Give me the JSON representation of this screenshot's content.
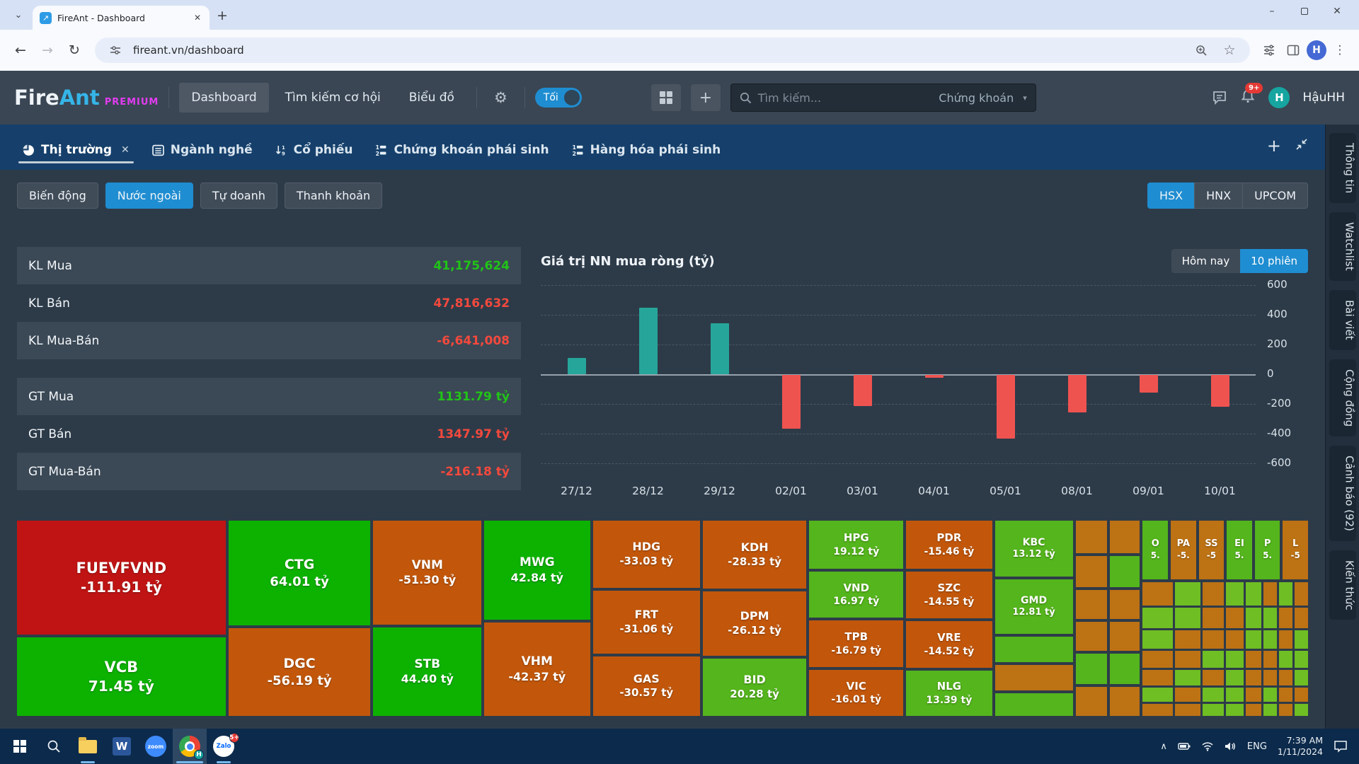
{
  "browser": {
    "tab_title": "FireAnt - Dashboard",
    "favicon_glyph": "↗",
    "url": "fireant.vn/dashboard"
  },
  "header": {
    "logo_fire": "Fire",
    "logo_ant": "Ant",
    "logo_badge": "PREMIUM",
    "nav": [
      {
        "label": "Dashboard",
        "slug": "dashboard",
        "active": true
      },
      {
        "label": "Tìm kiếm cơ hội",
        "slug": "tim-kiem-co-hoi"
      },
      {
        "label": "Biểu đồ",
        "slug": "bieu-do"
      }
    ],
    "theme_toggle_label": "Tối",
    "search_placeholder": "Tìm kiếm...",
    "search_scope": "Chứng khoán",
    "notification_badge": "9+",
    "avatar_initial": "H",
    "username": "HậuHH"
  },
  "workspace": {
    "tabs": [
      {
        "label": "Thị trường",
        "slug": "thi-truong",
        "icon": "pie",
        "active": true
      },
      {
        "label": "Ngành nghề",
        "slug": "nganh-nghe",
        "icon": "list"
      },
      {
        "label": "Cổ phiếu",
        "slug": "co-phieu",
        "icon": "sort"
      },
      {
        "label": "Chứng khoán phái sinh",
        "slug": "chung-khoan-phai-sinh",
        "icon": "numlist"
      },
      {
        "label": "Hàng hóa phái sinh",
        "slug": "hang-hoa-phai-sinh",
        "icon": "numlist"
      }
    ]
  },
  "filters": {
    "views": [
      {
        "label": "Biến động",
        "slug": "bien-dong"
      },
      {
        "label": "Nước ngoài",
        "slug": "nuoc-ngoai",
        "active": true
      },
      {
        "label": "Tự doanh",
        "slug": "tu-doanh"
      },
      {
        "label": "Thanh khoản",
        "slug": "thanh-khoan"
      }
    ],
    "exchanges": [
      {
        "label": "HSX",
        "slug": "hsx",
        "active": true
      },
      {
        "label": "HNX",
        "slug": "hnx"
      },
      {
        "label": "UPCOM",
        "slug": "upcom"
      }
    ]
  },
  "stats": {
    "groups": [
      {
        "rows": [
          {
            "label": "KL Mua",
            "value": "41,175,624",
            "dir": "up"
          },
          {
            "label": "KL Bán",
            "value": "47,816,632",
            "dir": "down"
          },
          {
            "label": "KL Mua-Bán",
            "value": "-6,641,008",
            "dir": "down"
          }
        ]
      },
      {
        "rows": [
          {
            "label": "GT Mua",
            "value": "1131.79 tỷ",
            "dir": "up"
          },
          {
            "label": "GT Bán",
            "value": "1347.97 tỷ",
            "dir": "down"
          },
          {
            "label": "GT Mua-Bán",
            "value": "-216.18 tỷ",
            "dir": "down"
          }
        ]
      }
    ]
  },
  "chart_data": {
    "type": "bar",
    "title": "Giá trị NN mua ròng (tỷ)",
    "buttons": [
      "Hôm nay",
      "10 phiên"
    ],
    "active_button": "10 phiên",
    "categories": [
      "27/12",
      "28/12",
      "29/12",
      "02/01",
      "03/01",
      "04/01",
      "05/01",
      "08/01",
      "09/01",
      "10/01"
    ],
    "values": [
      110,
      450,
      345,
      -360,
      -210,
      -20,
      -430,
      -250,
      -120,
      -215
    ],
    "ylim": [
      -600,
      600
    ],
    "yticks": [
      600,
      400,
      200,
      0,
      -200,
      -400,
      -600
    ],
    "grid": true,
    "positive_color": "#26a69a",
    "negative_color": "#ef5350"
  },
  "treemap": {
    "colors": {
      "red": "#c01414",
      "green1": "#0db201",
      "green2": "#54b51c",
      "green3": "#6fbe23",
      "orange1": "#c2570b",
      "orange2": "#bd7214"
    },
    "columns": [
      {
        "w": 17.5,
        "fs": 21,
        "cells": [
          {
            "sym": "FUEVFVND",
            "val": "-111.91 tỷ",
            "color": "red",
            "h": 65
          },
          {
            "sym": "VCB",
            "val": "71.45 tỷ",
            "color": "green1",
            "h": 35
          }
        ]
      },
      {
        "w": 11.5,
        "fs": 19,
        "cells": [
          {
            "sym": "CTG",
            "val": "64.01 tỷ",
            "color": "green1",
            "h": 57
          },
          {
            "sym": "DGC",
            "val": "-56.19 tỷ",
            "color": "orange1",
            "h": 43
          }
        ]
      },
      {
        "w": 7.5,
        "fs": 17,
        "cells": [
          {
            "sym": "VNM",
            "val": "-51.30 tỷ",
            "color": "orange1",
            "h": 56
          },
          {
            "sym": "STB",
            "val": "44.40 tỷ",
            "color": "green1",
            "h": 44
          }
        ]
      },
      {
        "w": 7.2,
        "fs": 17,
        "cells": [
          {
            "sym": "MWG",
            "val": "42.84 tỷ",
            "color": "green1",
            "h": 52
          },
          {
            "sym": "VHM",
            "val": "-42.37 tỷ",
            "color": "orange1",
            "h": 48
          }
        ]
      },
      {
        "w": 7.9,
        "fs": 16,
        "cells": [
          {
            "sym": "HDG",
            "val": "-33.03 tỷ",
            "color": "orange1",
            "h": 37
          },
          {
            "sym": "FRT",
            "val": "-31.06 tỷ",
            "color": "orange1",
            "h": 33
          },
          {
            "sym": "GAS",
            "val": "-30.57 tỷ",
            "color": "orange1",
            "h": 30
          }
        ]
      },
      {
        "w": 7.4,
        "fs": 16,
        "cells": [
          {
            "sym": "KDH",
            "val": "-28.33 tỷ",
            "color": "orange1",
            "h": 38
          },
          {
            "sym": "DPM",
            "val": "-26.12 tỷ",
            "color": "orange1",
            "h": 34
          },
          {
            "sym": "BID",
            "val": "20.28 tỷ",
            "color": "green2",
            "h": 28
          }
        ]
      },
      {
        "w": 6.5,
        "fs": 15,
        "cells": [
          {
            "sym": "HPG",
            "val": "19.12 tỷ",
            "color": "green2",
            "h": 27
          },
          {
            "sym": "VND",
            "val": "16.97 tỷ",
            "color": "green2",
            "h": 24
          },
          {
            "sym": "TPB",
            "val": "-16.79 tỷ",
            "color": "orange1",
            "h": 25
          },
          {
            "sym": "VIC",
            "val": "-16.01 tỷ",
            "color": "orange1",
            "h": 24
          }
        ]
      },
      {
        "w": 5.3,
        "fs": 15,
        "cells": [
          {
            "sym": "PDR",
            "val": "-15.46 tỷ",
            "color": "orange1",
            "h": 27
          },
          {
            "sym": "SZC",
            "val": "-14.55 tỷ",
            "color": "orange1",
            "h": 25
          },
          {
            "sym": "VRE",
            "val": "-14.52 tỷ",
            "color": "orange1",
            "h": 25
          },
          {
            "sym": "NLG",
            "val": "13.39 tỷ",
            "color": "green2",
            "h": 23
          }
        ]
      },
      {
        "w": 5.2,
        "fs": 14,
        "cells": [
          {
            "sym": "KBC",
            "val": "13.12 tỷ",
            "color": "green2",
            "h": 23
          },
          {
            "sym": "GMD",
            "val": "12.81 tỷ",
            "color": "green2",
            "h": 22
          },
          {
            "sym": "",
            "val": "",
            "color": "green2",
            "h": 19
          },
          {
            "sym": "",
            "val": "",
            "color": "orange2",
            "h": 19
          },
          {
            "sym": "",
            "val": "",
            "color": "green2",
            "h": 17
          }
        ]
      },
      {
        "w": 4.7,
        "fs": 0,
        "cells": [
          {
            "sym": "",
            "val": "",
            "color": "orange2",
            "h": 18
          },
          {
            "sym": "",
            "val": "",
            "color": "orange2",
            "h": 17
          },
          {
            "sym": "",
            "val": "",
            "color": "orange2",
            "h": 16
          },
          {
            "sym": "",
            "val": "",
            "color": "orange2",
            "h": 16
          },
          {
            "sym": "",
            "val": "",
            "color": "green2",
            "h": 17
          },
          {
            "sym": "",
            "val": "",
            "color": "orange2",
            "h": 16
          }
        ]
      },
      {
        "w": 4.4,
        "fs": 0,
        "cells": [
          {
            "sym": "",
            "val": "",
            "color": "orange2",
            "h": 18
          },
          {
            "sym": "",
            "val": "",
            "color": "green2",
            "h": 17
          },
          {
            "sym": "",
            "val": "",
            "color": "orange2",
            "h": 16
          },
          {
            "sym": "",
            "val": "",
            "color": "orange2",
            "h": 16
          },
          {
            "sym": "",
            "val": "",
            "color": "green2",
            "h": 17
          },
          {
            "sym": "",
            "val": "",
            "color": "orange2",
            "h": 16
          }
        ]
      }
    ],
    "corner": {
      "w": 13.0,
      "top": [
        {
          "sym": "O",
          "val": "5.",
          "color": "green2"
        },
        {
          "sym": "PA",
          "val": "-5.",
          "color": "orange2"
        },
        {
          "sym": "SS",
          "val": "-5",
          "color": "orange2"
        },
        {
          "sym": "EI",
          "val": "5.",
          "color": "green2"
        },
        {
          "sym": "P",
          "val": "5.",
          "color": "green2"
        },
        {
          "sym": "L",
          "val": "-5",
          "color": "orange2"
        }
      ],
      "grid": {
        "col_fr": [
          20,
          17,
          14,
          12,
          10,
          9,
          9,
          9
        ],
        "row_fr": [
          15,
          13,
          12,
          11,
          10,
          9,
          8
        ],
        "pattern": [
          "ogoggogo",
          "ggooggoo",
          "goooggog",
          "ooggoogg",
          "ogogooog",
          "goggogoo",
          "ooggogog"
        ]
      }
    }
  },
  "right_rail": [
    {
      "label": "Thông tin",
      "slug": "thong-tin"
    },
    {
      "label": "Watchlist",
      "slug": "watchlist"
    },
    {
      "label": "Bài viết",
      "slug": "bai-viet"
    },
    {
      "label": "Cộng đồng",
      "slug": "cong-dong"
    },
    {
      "label": "Cảnh báo (92)",
      "slug": "canh-bao"
    },
    {
      "label": "Kiến thức",
      "slug": "kien-thuc"
    }
  ],
  "taskbar": {
    "word_glyph": "W",
    "zoom_label": "zoom",
    "zalo_label": "Zalo",
    "chrome_badge": "H",
    "zalo_badge": "5+",
    "lang": "ENG",
    "time": "7:39 AM",
    "date": "1/11/2024"
  }
}
